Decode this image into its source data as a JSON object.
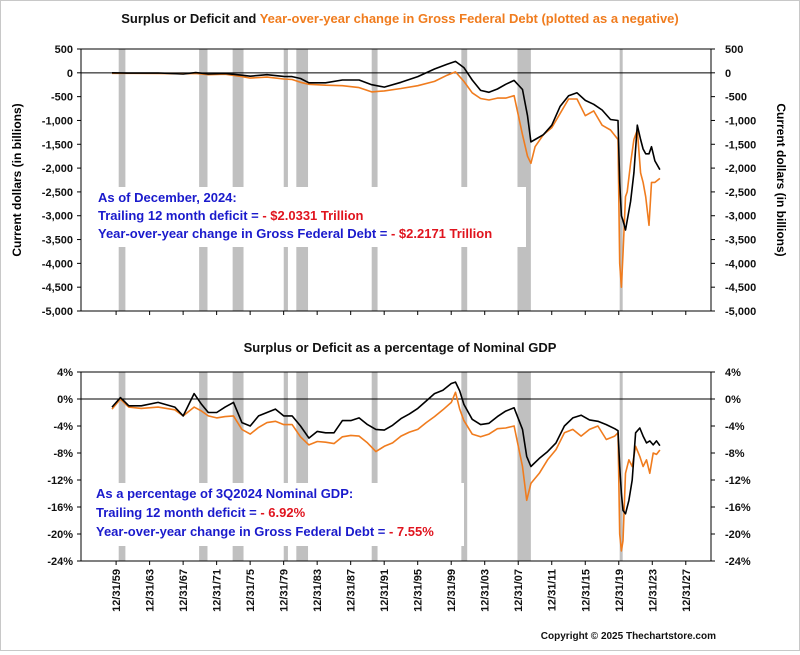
{
  "copyright": "Copyright © 2025 Thechartstore.com",
  "colors": {
    "surplus": "#000000",
    "debt": "#f07c1e",
    "recession": "#c0c0c0",
    "zero_line": "#000000",
    "label_blue": "#1a1acc",
    "value_red": "#e0141e"
  },
  "x_axis": {
    "ticks": [
      "12/31/59",
      "12/31/63",
      "12/31/67",
      "12/31/71",
      "12/31/75",
      "12/31/79",
      "12/31/83",
      "12/31/87",
      "12/31/91",
      "12/31/95",
      "12/31/99",
      "12/31/03",
      "12/31/07",
      "12/31/11",
      "12/31/15",
      "12/31/19",
      "12/31/23",
      "12/31/27"
    ],
    "tick_years": [
      1959.99,
      1963.99,
      1967.99,
      1971.99,
      1975.99,
      1979.99,
      1983.99,
      1987.99,
      1991.99,
      1995.99,
      1999.99,
      2003.99,
      2007.99,
      2011.99,
      2015.99,
      2019.99,
      2023.99,
      2027.99
    ],
    "xlim": [
      1955.8,
      2031.0
    ]
  },
  "recessions": [
    [
      1960.3,
      1961.1
    ],
    [
      1969.9,
      1970.9
    ],
    [
      1973.9,
      1975.2
    ],
    [
      1980.0,
      1980.5
    ],
    [
      1981.5,
      1982.9
    ],
    [
      1990.5,
      1991.2
    ],
    [
      2001.2,
      2001.9
    ],
    [
      2007.9,
      2009.5
    ],
    [
      2020.1,
      2020.4
    ]
  ],
  "chart_data": [
    {
      "type": "line",
      "title_part1": "Surplus or Deficit and ",
      "title_part2": "Year-over-year change in Gross Federal Debt (plotted as a negative)",
      "ylabel_left": "Current dollars (in billions)",
      "ylabel_right": "Current dollars (in billions)",
      "ylim": [
        -5000,
        500
      ],
      "yticks": [
        500,
        0,
        -500,
        -1000,
        -1500,
        -2000,
        -2500,
        -3000,
        -3500,
        -4000,
        -4500,
        -5000
      ],
      "ytick_labels": [
        "500",
        "0",
        "-500",
        "-1,000",
        "-1,500",
        "-2,000",
        "-2,500",
        "-3,000",
        "-3,500",
        "-4,000",
        "-4,500",
        "-5,000"
      ],
      "series": [
        {
          "key": "surplus",
          "x": [
            1959.5,
            1962,
            1965,
            1968,
            1969.5,
            1971,
            1973,
            1975,
            1976,
            1978,
            1980,
            1981,
            1982,
            1983,
            1985,
            1987,
            1989,
            1990.5,
            1992,
            1994,
            1996,
            1998,
            1999.5,
            2000.5,
            2001.5,
            2002.5,
            2003.5,
            2004.5,
            2005.5,
            2006.5,
            2007.5,
            2008.5,
            2009.1,
            2009.5,
            2010,
            2011,
            2012,
            2013,
            2014,
            2015,
            2016,
            2017,
            2018,
            2019,
            2019.9,
            2020.1,
            2020.3,
            2020.5,
            2020.8,
            2021,
            2021.4,
            2021.8,
            2022.2,
            2022.6,
            2022.9,
            2023.2,
            2023.6,
            2023.9,
            2024.3,
            2024.9
          ],
          "values": [
            0,
            -5,
            -3,
            -25,
            5,
            -25,
            -12,
            -50,
            -70,
            -40,
            -75,
            -80,
            -120,
            -210,
            -210,
            -150,
            -150,
            -250,
            -300,
            -200,
            -80,
            80,
            180,
            240,
            110,
            -150,
            -370,
            -410,
            -340,
            -240,
            -160,
            -350,
            -900,
            -1450,
            -1400,
            -1300,
            -1100,
            -700,
            -480,
            -420,
            -580,
            -660,
            -780,
            -980,
            -1000,
            -2300,
            -3000,
            -3100,
            -3300,
            -3100,
            -2700,
            -2100,
            -1100,
            -1400,
            -1600,
            -1700,
            -1700,
            -1550,
            -1850,
            -2033
          ]
        },
        {
          "key": "debt",
          "x": [
            1959.5,
            1962,
            1965,
            1968,
            1969.5,
            1971,
            1973,
            1975,
            1976,
            1978,
            1980,
            1981,
            1982,
            1983,
            1985,
            1987,
            1989,
            1990.5,
            1992,
            1994,
            1996,
            1998,
            1999.5,
            2000.5,
            2001.5,
            2002.5,
            2003.5,
            2004.5,
            2005.5,
            2006.5,
            2007.5,
            2008.5,
            2009.1,
            2009.5,
            2010,
            2011,
            2012,
            2013,
            2014,
            2015,
            2016,
            2017,
            2018,
            2019,
            2019.9,
            2020.1,
            2020.3,
            2020.5,
            2020.8,
            2021,
            2021.4,
            2021.8,
            2022.2,
            2022.6,
            2022.9,
            2023.2,
            2023.6,
            2023.9,
            2024.3,
            2024.9
          ],
          "values": [
            -10,
            -10,
            -15,
            -20,
            -15,
            -40,
            -30,
            -80,
            -110,
            -90,
            -130,
            -140,
            -200,
            -240,
            -260,
            -270,
            -310,
            -400,
            -380,
            -330,
            -270,
            -180,
            -50,
            20,
            -180,
            -420,
            -540,
            -570,
            -530,
            -530,
            -480,
            -1300,
            -1750,
            -1900,
            -1550,
            -1300,
            -1150,
            -850,
            -550,
            -550,
            -900,
            -800,
            -1100,
            -1200,
            -1400,
            -4000,
            -4500,
            -3800,
            -2600,
            -2500,
            -1900,
            -1400,
            -1200,
            -2100,
            -2300,
            -2600,
            -3200,
            -2300,
            -2300,
            -2217
          ]
        }
      ],
      "annotations": [
        {
          "label": "As of December, 2024:",
          "value": ""
        },
        {
          "label": "Trailing 12 month deficit = ",
          "value": " - $2.0331 Trillion"
        },
        {
          "label": "Year-over-year change in Gross Federal Debt = ",
          "value": " - $2.2171 Trillion"
        }
      ]
    },
    {
      "type": "line",
      "title": "Surplus or Deficit as a percentage of Nominal GDP",
      "ylim": [
        -24,
        4
      ],
      "yticks": [
        4,
        0,
        -4,
        -8,
        -12,
        -16,
        -20,
        -24
      ],
      "ytick_labels": [
        "4%",
        "0%",
        "-4%",
        "-8%",
        "-12%",
        "-16%",
        "-20%",
        "-24%"
      ],
      "series": [
        {
          "key": "surplus",
          "x": [
            1959.5,
            1960.5,
            1961.5,
            1963,
            1965,
            1967,
            1968,
            1969.3,
            1970.2,
            1971,
            1972,
            1973,
            1974,
            1975,
            1976,
            1977,
            1978,
            1979,
            1980,
            1981,
            1982,
            1983,
            1984,
            1985,
            1986,
            1987,
            1988,
            1989,
            1990,
            1991,
            1992,
            1993,
            1994,
            1995,
            1996,
            1997,
            1998,
            1999,
            2000,
            2000.5,
            2001,
            2001.5,
            2002.5,
            2003.5,
            2004.5,
            2005.5,
            2006.5,
            2007.5,
            2008.5,
            2009,
            2009.5,
            2010.5,
            2011.5,
            2012.5,
            2013.5,
            2014.5,
            2015.5,
            2016.5,
            2017.5,
            2018.5,
            2019.5,
            2019.9,
            2020.1,
            2020.3,
            2020.5,
            2020.8,
            2021.2,
            2021.6,
            2022,
            2022.5,
            2022.9,
            2023.3,
            2023.7,
            2024.1,
            2024.5,
            2024.9
          ],
          "values": [
            -1.2,
            0.2,
            -1.0,
            -1.0,
            -0.5,
            -1.2,
            -2.5,
            0.8,
            -0.8,
            -2.0,
            -2.0,
            -1.2,
            -0.5,
            -3.5,
            -4.0,
            -2.5,
            -2.0,
            -1.5,
            -2.5,
            -2.5,
            -4.0,
            -5.8,
            -4.8,
            -5.0,
            -5.0,
            -3.2,
            -3.2,
            -2.8,
            -3.8,
            -4.5,
            -4.6,
            -3.9,
            -2.9,
            -2.2,
            -1.4,
            -0.3,
            0.8,
            1.3,
            2.3,
            2.5,
            1.2,
            -0.8,
            -3.0,
            -3.8,
            -3.6,
            -2.6,
            -1.8,
            -1.3,
            -4.5,
            -8.5,
            -10.0,
            -8.8,
            -7.8,
            -6.5,
            -4.0,
            -2.8,
            -2.4,
            -3.1,
            -3.3,
            -3.8,
            -4.4,
            -4.7,
            -10.0,
            -14.0,
            -16.5,
            -17.0,
            -15.0,
            -12.0,
            -5.0,
            -4.3,
            -5.5,
            -6.5,
            -6.2,
            -6.8,
            -6.2,
            -6.92
          ]
        },
        {
          "key": "debt",
          "x": [
            1959.5,
            1960.5,
            1961.5,
            1963,
            1965,
            1967,
            1968,
            1969.3,
            1970.2,
            1971,
            1972,
            1973,
            1974,
            1975,
            1976,
            1977,
            1978,
            1979,
            1980,
            1981,
            1982,
            1983,
            1984,
            1985,
            1986,
            1987,
            1988,
            1989,
            1990,
            1991,
            1992,
            1993,
            1994,
            1995,
            1996,
            1997,
            1998,
            1999,
            2000,
            2000.5,
            2001,
            2001.5,
            2002.5,
            2003.5,
            2004.5,
            2005.5,
            2006.5,
            2007.5,
            2008.5,
            2009,
            2009.5,
            2010.5,
            2011.5,
            2012.5,
            2013.5,
            2014.5,
            2015.5,
            2016.5,
            2017.5,
            2018.5,
            2019.5,
            2019.9,
            2020.1,
            2020.3,
            2020.5,
            2020.8,
            2021.2,
            2021.6,
            2022,
            2022.5,
            2022.9,
            2023.3,
            2023.7,
            2024.1,
            2024.5,
            2024.9
          ],
          "values": [
            -1.5,
            0.0,
            -1.2,
            -1.4,
            -1.2,
            -1.6,
            -2.5,
            -1.2,
            -1.8,
            -2.5,
            -2.8,
            -2.6,
            -2.5,
            -4.5,
            -5.2,
            -4.2,
            -3.5,
            -3.3,
            -3.8,
            -3.8,
            -5.6,
            -6.8,
            -6.3,
            -6.4,
            -6.6,
            -5.6,
            -5.4,
            -5.5,
            -6.5,
            -7.8,
            -7.0,
            -6.5,
            -5.5,
            -4.9,
            -4.5,
            -3.5,
            -2.6,
            -1.6,
            -0.5,
            1.0,
            -1.5,
            -3.2,
            -5.2,
            -5.6,
            -5.2,
            -4.4,
            -4.3,
            -4.0,
            -10.0,
            -15.0,
            -12.5,
            -11.0,
            -9.0,
            -7.5,
            -5.0,
            -4.5,
            -5.5,
            -4.5,
            -4.0,
            -6.0,
            -5.5,
            -5.0,
            -20.0,
            -22.5,
            -21.0,
            -11.0,
            -9.0,
            -10.0,
            -7.0,
            -8.5,
            -10.0,
            -9.0,
            -11.0,
            -8.0,
            -8.2,
            -7.55
          ]
        }
      ],
      "annotations": [
        {
          "label": "As a percentage of 3Q2024 Nominal GDP:",
          "value": ""
        },
        {
          "label": "Trailing 12 month deficit = ",
          "value": " - 6.92%"
        },
        {
          "label": "Year-over-year change in Gross Federal Debt = ",
          "value": " - 7.55%"
        }
      ]
    }
  ]
}
